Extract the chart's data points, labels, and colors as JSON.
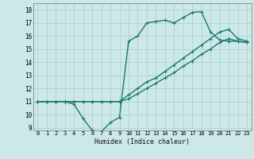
{
  "xlabel": "Humidex (Indice chaleur)",
  "ylabel": "",
  "xlim": [
    -0.5,
    23.5
  ],
  "ylim": [
    8.8,
    18.5
  ],
  "xticks": [
    0,
    1,
    2,
    3,
    4,
    5,
    6,
    7,
    8,
    9,
    10,
    11,
    12,
    13,
    14,
    15,
    16,
    17,
    18,
    19,
    20,
    21,
    22,
    23
  ],
  "yticks": [
    9,
    10,
    11,
    12,
    13,
    14,
    15,
    16,
    17,
    18
  ],
  "bg_color": "#cce8e8",
  "grid_color": "#aacccc",
  "line_color": "#1a7a6e",
  "line_width": 1.0,
  "marker": "+",
  "marker_size": 3.5,
  "marker_lw": 0.8,
  "lines": [
    {
      "x": [
        0,
        1,
        2,
        3,
        4,
        5,
        6,
        7,
        8,
        9,
        10,
        11,
        12,
        13,
        14,
        15,
        16,
        17,
        18,
        19,
        20,
        21,
        22,
        23
      ],
      "y": [
        11,
        11,
        11,
        11,
        10.8,
        9.7,
        8.8,
        8.7,
        9.4,
        9.8,
        15.6,
        16.0,
        17.0,
        17.1,
        17.2,
        17.0,
        17.4,
        17.8,
        17.85,
        16.3,
        15.7,
        15.6,
        15.6,
        15.5
      ]
    },
    {
      "x": [
        0,
        1,
        2,
        3,
        4,
        5,
        6,
        7,
        8,
        9,
        10,
        11,
        12,
        13,
        14,
        15,
        16,
        17,
        18,
        19,
        20,
        21,
        22,
        23
      ],
      "y": [
        11,
        11,
        11,
        11,
        11,
        11,
        11,
        11,
        11,
        11,
        11.5,
        12.0,
        12.5,
        12.8,
        13.3,
        13.8,
        14.3,
        14.8,
        15.3,
        15.8,
        16.3,
        16.5,
        15.8,
        15.6
      ]
    },
    {
      "x": [
        0,
        1,
        2,
        3,
        4,
        5,
        6,
        7,
        8,
        9,
        10,
        11,
        12,
        13,
        14,
        15,
        16,
        17,
        18,
        19,
        20,
        21,
        22,
        23
      ],
      "y": [
        11,
        11,
        11,
        11,
        11,
        11,
        11,
        11,
        11,
        11,
        11.2,
        11.6,
        12.0,
        12.4,
        12.8,
        13.2,
        13.7,
        14.1,
        14.6,
        15.0,
        15.5,
        15.8,
        15.6,
        15.5
      ]
    }
  ]
}
